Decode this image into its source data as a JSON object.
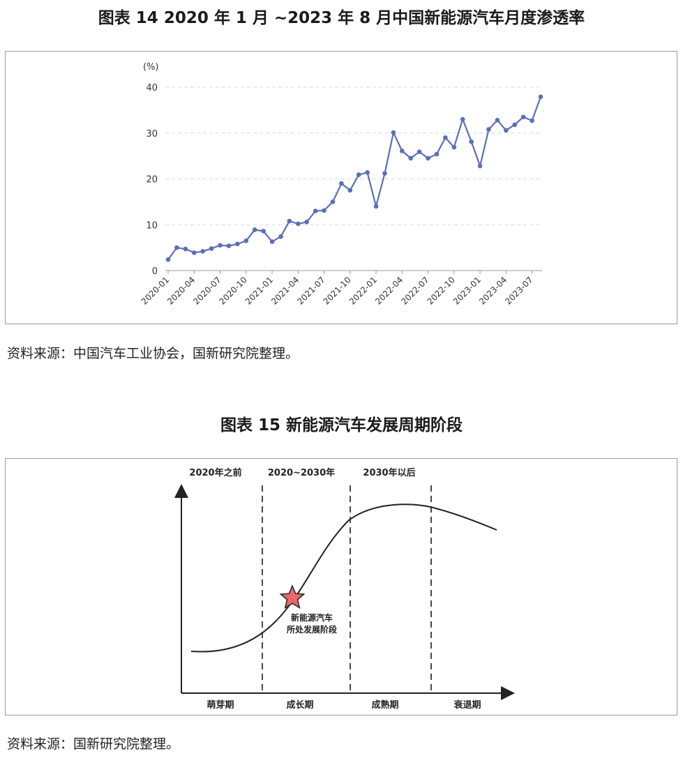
{
  "figure1": {
    "title": "图表 14  2020 年 1 月 ~2023 年 8 月中国新能源汽车月度渗透率",
    "source": "资料来源：中国汽车工业协会，国新研究院整理。"
  },
  "figure2": {
    "title": "图表 15  新能源汽车发展周期阶段",
    "source": "资料来源：国新研究院整理。"
  },
  "chart_data": [
    {
      "type": "line",
      "title": "图表 14  2020 年 1 月 ~2023 年 8 月中国新能源汽车月度渗透率",
      "ylabel": "(%)",
      "xlabel": "",
      "ylim": [
        0,
        40
      ],
      "yticks": [
        0,
        10,
        20,
        30,
        40
      ],
      "grid": true,
      "color": "#5b6fb5",
      "x_tick_labels": [
        "2020-01",
        "2020-04",
        "2020-07",
        "2020-10",
        "2021-01",
        "2021-04",
        "2021-07",
        "2021-10",
        "2022-01",
        "2022-04",
        "2022-07",
        "2022-10",
        "2023-01",
        "2023-04",
        "2023-07"
      ],
      "x": [
        "2020-01",
        "2020-02",
        "2020-03",
        "2020-04",
        "2020-05",
        "2020-06",
        "2020-07",
        "2020-08",
        "2020-09",
        "2020-10",
        "2020-11",
        "2020-12",
        "2021-01",
        "2021-02",
        "2021-03",
        "2021-04",
        "2021-05",
        "2021-06",
        "2021-07",
        "2021-08",
        "2021-09",
        "2021-10",
        "2021-11",
        "2021-12",
        "2022-01",
        "2022-02",
        "2022-03",
        "2022-04",
        "2022-05",
        "2022-06",
        "2022-07",
        "2022-08",
        "2022-09",
        "2022-10",
        "2022-11",
        "2022-12",
        "2023-01",
        "2023-02",
        "2023-03",
        "2023-04",
        "2023-05",
        "2023-06",
        "2023-07",
        "2023-08"
      ],
      "values": [
        2.4,
        5.0,
        4.7,
        3.9,
        4.2,
        4.8,
        5.5,
        5.4,
        5.8,
        6.5,
        8.9,
        8.6,
        6.3,
        7.4,
        10.8,
        10.2,
        10.6,
        13.0,
        13.1,
        15.0,
        19.0,
        17.5,
        20.9,
        21.4,
        14.0,
        21.2,
        30.1,
        26.1,
        24.5,
        25.9,
        24.5,
        25.4,
        29.0,
        26.9,
        33.0,
        28.1,
        22.8,
        30.8,
        32.8,
        30.6,
        31.8,
        33.5,
        32.7,
        37.9
      ]
    },
    {
      "type": "diagram",
      "title": "图表 15  新能源汽车发展周期阶段",
      "periods": [
        "2020年之前",
        "2020~2030年",
        "2030年以后"
      ],
      "stages": [
        "萌芽期",
        "成长期",
        "成熟期",
        "衰退期"
      ],
      "marker_label_line1": "新能源汽车",
      "marker_label_line2": "所处发展阶段",
      "marker_color": "#e8696a"
    }
  ]
}
